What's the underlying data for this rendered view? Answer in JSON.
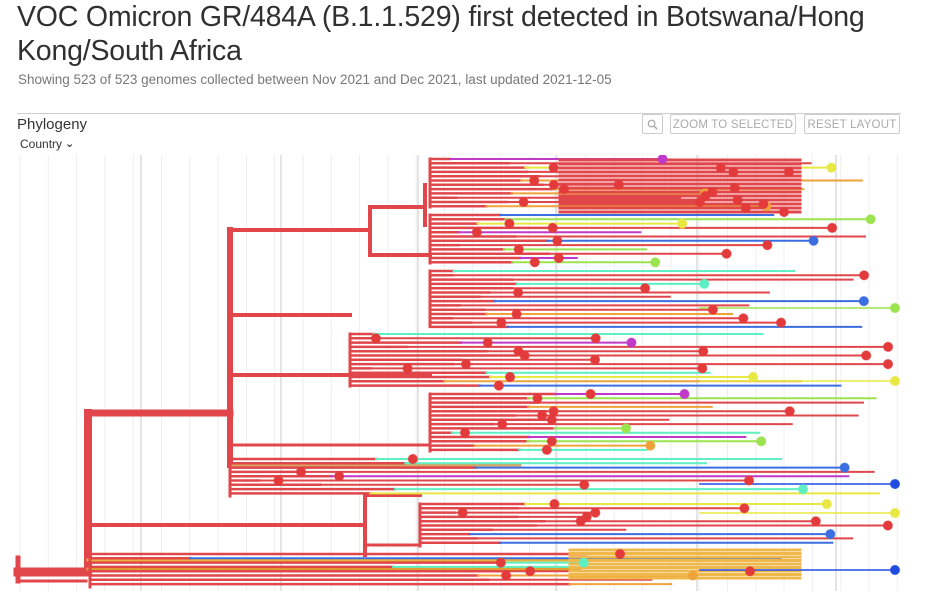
{
  "header": {
    "title": "VOC Omicron GR/484A (B.1.1.529) first detected in Botswana/Hong Kong/South Africa",
    "subtitle": "Showing 523 of 523 genomes collected between Nov 2021 and Dec 2021, last updated 2021-12-05"
  },
  "panel": {
    "title": "Phylogeny",
    "color_by": "Country",
    "zoom_icon": "magnifier-icon",
    "zoom_to_selected": "ZOOM TO SELECTED",
    "reset_layout": "RESET LAYOUT"
  },
  "tree": {
    "num_tips": 523,
    "branch_color": "#e0464a",
    "tip_colors": [
      "#e33b3b",
      "#e33b3b",
      "#e33b3b",
      "#e33b3b",
      "#e33b3b",
      "#e33b3b",
      "#f0a23a",
      "#e8e842",
      "#9be34f",
      "#5ef0c2",
      "#3b6ee0",
      "#c039c8"
    ]
  }
}
